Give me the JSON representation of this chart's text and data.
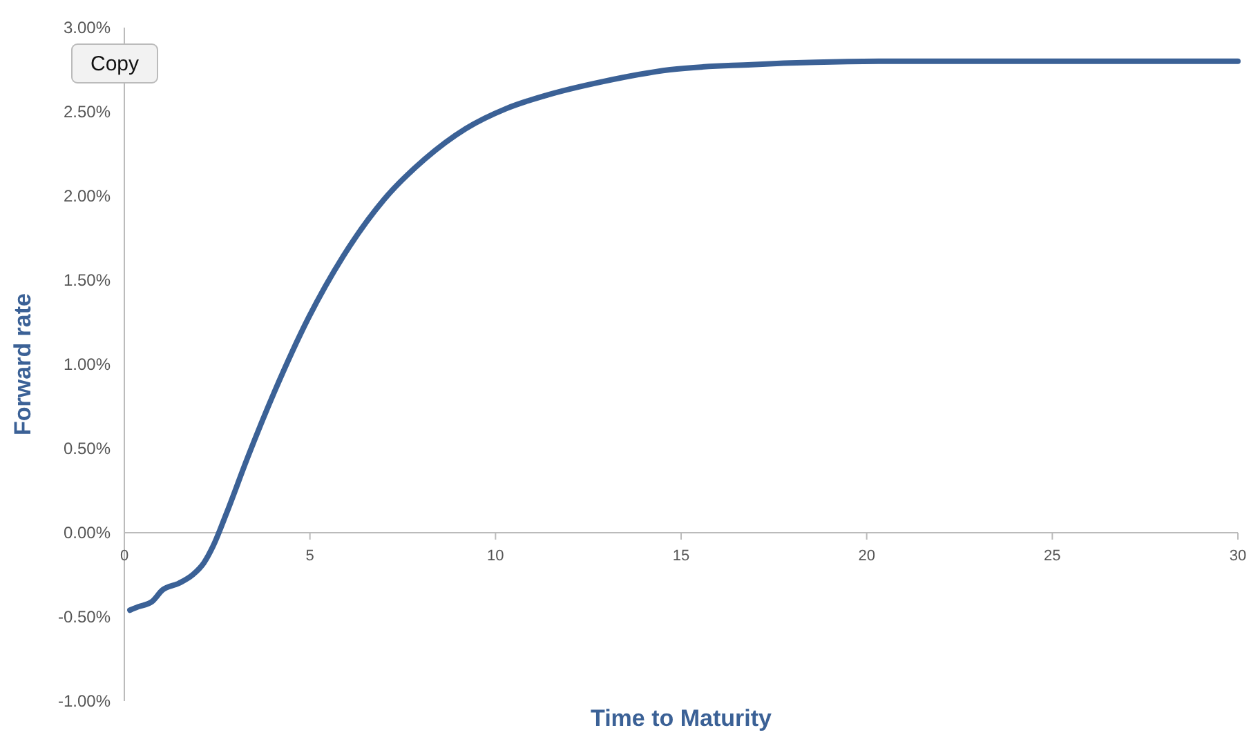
{
  "chart_data": {
    "type": "line",
    "xlabel": "Time to Maturity",
    "ylabel": "Forward rate",
    "annotations": [
      "Copy"
    ],
    "x": [
      0.15,
      0.37,
      0.74,
      1.03,
      1.47,
      1.84,
      2.14,
      2.39,
      2.76,
      3.31,
      4.05,
      4.97,
      5.89,
      7.0,
      8.1,
      9.2,
      10.3,
      11.4,
      12.9,
      14.7,
      16.9,
      20.6,
      30
    ],
    "series": [
      {
        "color": "#3b6196",
        "values": [
          -0.46,
          -0.44,
          -0.41,
          -0.34,
          -0.3,
          -0.25,
          -0.18,
          -0.08,
          0.12,
          0.44,
          0.84,
          1.28,
          1.64,
          1.98,
          2.22,
          2.4,
          2.52,
          2.6,
          2.68,
          2.75,
          2.78,
          2.8,
          2.8
        ]
      }
    ],
    "xlim": [
      0,
      30
    ],
    "xticks": [
      0,
      5,
      10,
      15,
      20,
      25,
      30
    ],
    "ylim": [
      -1,
      3
    ],
    "yticks": [
      {
        "value": -1,
        "label": "-1.00%"
      },
      {
        "value": -0.5,
        "label": "-0.50%"
      },
      {
        "value": 0,
        "label": "0.00%"
      },
      {
        "value": 0.5,
        "label": "0.50%"
      },
      {
        "value": 1,
        "label": "1.00%"
      },
      {
        "value": 1.5,
        "label": "1.50%"
      },
      {
        "value": 2,
        "label": "2.00%"
      },
      {
        "value": 2.5,
        "label": "2.50%"
      },
      {
        "value": 3,
        "label": "3.00%"
      }
    ],
    "grid": false,
    "marker": "none",
    "line_style": "solid"
  }
}
